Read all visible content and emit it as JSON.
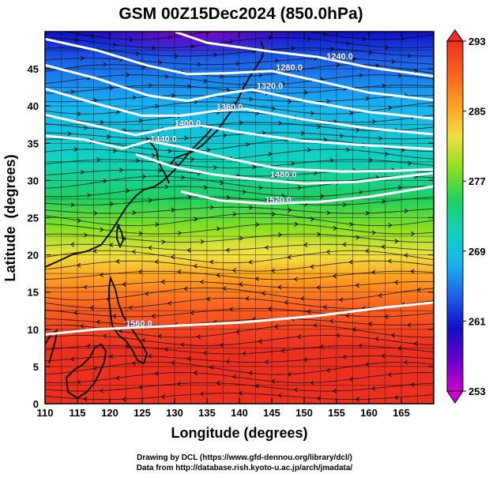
{
  "title": "GSM 00Z15Dec2024 (850.0hPa)",
  "credits": {
    "drawing": "Drawing by DCL (https://www.gfd-dennou.org/library/dcl/)",
    "data": "Data from http://database.rish.kyoto-u.ac.jp/arch/jmadata/"
  },
  "chart_data": {
    "type": "heatmap",
    "subtype": "temperature-shaded map with geopotential-height contours and wind streamlines",
    "title": "GSM 00Z15Dec2024 (850.0hPa)",
    "xlabel": "Longitude (degrees)",
    "ylabel": "Latitude  (degrees)",
    "xlim": [
      110,
      170
    ],
    "ylim": [
      0,
      50
    ],
    "x_ticks": [
      110,
      115,
      120,
      125,
      130,
      135,
      140,
      145,
      150,
      155,
      160,
      165
    ],
    "y_ticks": [
      0,
      5,
      10,
      15,
      20,
      25,
      30,
      35,
      40,
      45
    ],
    "colorbar": {
      "labels": [
        253,
        261,
        269,
        277,
        285,
        293
      ],
      "min": 253,
      "max": 293,
      "colors": [
        "#cc00cc",
        "#6600cc",
        "#1010c8",
        "#1c62e8",
        "#18b4f0",
        "#10d2c0",
        "#20d060",
        "#8ce020",
        "#f0e040",
        "#ffa020",
        "#f86020",
        "#ec3020"
      ]
    },
    "contours": [
      {
        "label": "1240.0",
        "label_lon": 155.5,
        "label_lat": 46.3,
        "points": [
          [
            110,
            54
          ],
          [
            125,
            51.5
          ],
          [
            135,
            48.5
          ],
          [
            145,
            47.3
          ],
          [
            152,
            46.6
          ],
          [
            160,
            45.2
          ],
          [
            170,
            44
          ]
        ]
      },
      {
        "label": "1280.0",
        "label_lon": 147.7,
        "label_lat": 44.8,
        "points": [
          [
            110,
            49
          ],
          [
            118,
            47.5
          ],
          [
            126,
            45.4
          ],
          [
            132,
            44.3
          ],
          [
            138,
            44.4
          ],
          [
            145,
            44.7
          ],
          [
            152,
            43.4
          ],
          [
            160,
            41.8
          ],
          [
            170,
            40.8
          ]
        ]
      },
      {
        "label": "1320.0",
        "label_lon": 144.7,
        "label_lat": 42.3,
        "points": [
          [
            110,
            45.5
          ],
          [
            118,
            43.7
          ],
          [
            126,
            41.4
          ],
          [
            132,
            40.7
          ],
          [
            137,
            41.6
          ],
          [
            142,
            42.2
          ],
          [
            150,
            40.7
          ],
          [
            160,
            39.2
          ],
          [
            170,
            38.3
          ]
        ]
      },
      {
        "label": "1360.0",
        "label_lon": 138.5,
        "label_lat": 39.5,
        "points": [
          [
            110,
            42.3
          ],
          [
            118,
            40.3
          ],
          [
            125,
            38.7
          ],
          [
            131,
            38.7
          ],
          [
            136,
            39.3
          ],
          [
            141,
            39.6
          ],
          [
            150,
            38.2
          ],
          [
            160,
            37
          ],
          [
            170,
            36.2
          ]
        ]
      },
      {
        "label": "1400.0",
        "label_lon": 132.0,
        "label_lat": 37.3,
        "points": [
          [
            110,
            38.8
          ],
          [
            118,
            37.3
          ],
          [
            124,
            36.1
          ],
          [
            129,
            37
          ],
          [
            134,
            37.4
          ],
          [
            140,
            36.5
          ],
          [
            150,
            35.3
          ],
          [
            160,
            34.7
          ],
          [
            170,
            34.2
          ]
        ]
      },
      {
        "label": "1440.0",
        "label_lon": 128.3,
        "label_lat": 35.2,
        "points": [
          [
            110,
            36
          ],
          [
            116,
            35.5
          ],
          [
            122,
            34.3
          ],
          [
            126,
            35.3
          ],
          [
            131,
            34.5
          ],
          [
            138,
            33
          ],
          [
            146,
            31.6
          ],
          [
            156,
            31.2
          ],
          [
            164,
            31.3
          ],
          [
            170,
            31.5
          ]
        ]
      },
      {
        "label": "1480.0",
        "label_lon": 146.8,
        "label_lat": 30.4,
        "points": [
          [
            124,
            33.5
          ],
          [
            130,
            31.8
          ],
          [
            136,
            30.8
          ],
          [
            142,
            30.2
          ],
          [
            150,
            29.6
          ],
          [
            158,
            29.8
          ],
          [
            166,
            30.6
          ],
          [
            170,
            31
          ]
        ]
      },
      {
        "label": "1520.0",
        "label_lon": 146.0,
        "label_lat": 27.0,
        "points": [
          [
            131,
            28.5
          ],
          [
            137,
            27.3
          ],
          [
            144,
            26.9
          ],
          [
            152,
            27.1
          ],
          [
            160,
            27.8
          ],
          [
            170,
            29.2
          ]
        ]
      },
      {
        "label": "1560.0",
        "label_lon": 124.5,
        "label_lat": 10.4,
        "points": [
          [
            110,
            9.3
          ],
          [
            118,
            10
          ],
          [
            128,
            10.4
          ],
          [
            140,
            10.9
          ],
          [
            152,
            11.8
          ],
          [
            162,
            12.9
          ],
          [
            170,
            13.6
          ]
        ]
      }
    ],
    "wind_field": "streamlines, predominantly westerly north of 30N and easterly south of 22N",
    "grid": true
  }
}
